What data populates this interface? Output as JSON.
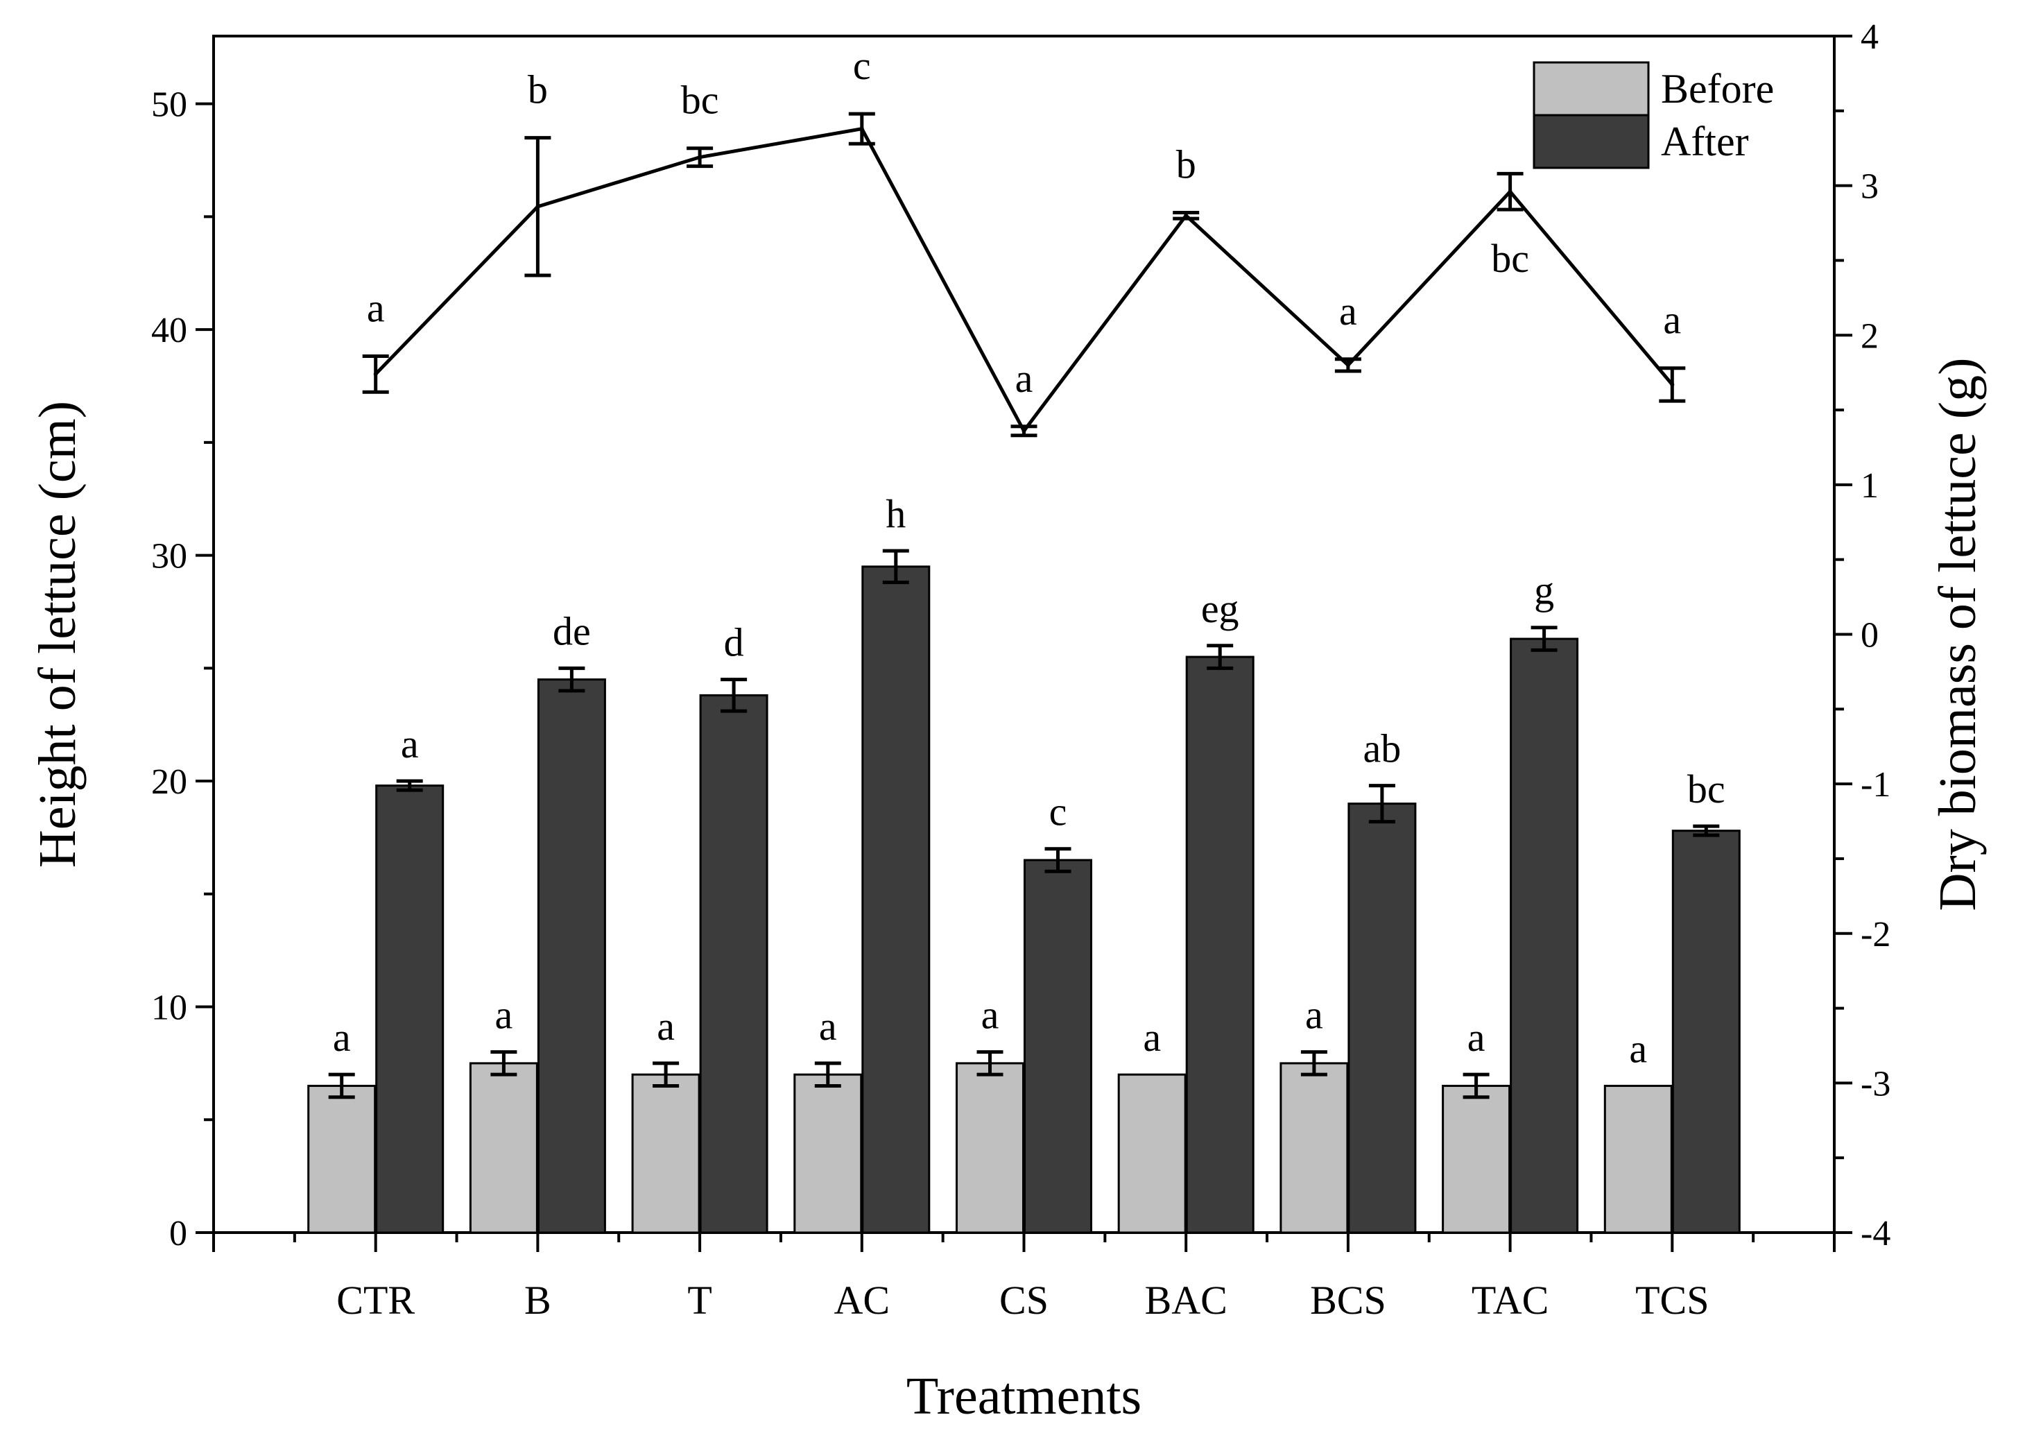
{
  "chart_data": {
    "type": "bar",
    "xlabel": "Treatments",
    "ylabel": "Height of lettuce (cm)",
    "y2label": "Dry biomass of lettuce (g)",
    "categories": [
      "CTR",
      "B",
      "T",
      "AC",
      "CS",
      "BAC",
      "BCS",
      "TAC",
      "TCS"
    ],
    "ylim": [
      0,
      53
    ],
    "y2lim": [
      -4,
      4
    ],
    "yticks": [
      "0",
      "10",
      "20",
      "30",
      "40",
      "50"
    ],
    "y2ticks": [
      "-4",
      "-3",
      "-2",
      "-1",
      "0",
      "1",
      "2",
      "3",
      "4"
    ],
    "series": [
      {
        "name": "Before",
        "axis": "left",
        "type": "bar",
        "color": "#c0c0c0",
        "values": [
          6.5,
          7.5,
          7.0,
          7.0,
          7.5,
          7.0,
          7.5,
          6.5,
          6.5
        ],
        "errors": [
          0.5,
          0.5,
          0.5,
          0.5,
          0.5,
          0,
          0.5,
          0.5,
          0
        ],
        "labels": [
          "a",
          "a",
          "a",
          "a",
          "a",
          "a",
          "a",
          "a",
          "a"
        ]
      },
      {
        "name": "After",
        "axis": "left",
        "type": "bar",
        "color": "#3c3c3c",
        "values": [
          19.8,
          24.5,
          23.8,
          29.5,
          16.5,
          25.5,
          19.0,
          26.3,
          17.8
        ],
        "errors": [
          0.2,
          0.5,
          0.7,
          0.7,
          0.5,
          0.5,
          0.8,
          0.5,
          0.2
        ],
        "labels": [
          "a",
          "de",
          "d",
          "h",
          "c",
          "eg",
          "ab",
          "g",
          "bc"
        ]
      },
      {
        "axis": "right",
        "type": "line",
        "color": "#000000",
        "values": [
          1.74,
          2.86,
          3.19,
          3.38,
          1.36,
          2.8,
          1.8,
          2.96,
          1.67
        ],
        "errors": [
          0.12,
          0.46,
          0.06,
          0.1,
          0.03,
          0.02,
          0.04,
          0.12,
          0.11
        ],
        "labels": [
          "a",
          "b",
          "bc",
          "c",
          "a",
          "b",
          "a",
          "bc",
          "a"
        ],
        "label_positions": [
          "above",
          "above",
          "above",
          "above",
          "above",
          "above",
          "above",
          "below",
          "above"
        ]
      }
    ],
    "legend": {
      "position": "top-right",
      "entries": [
        "Before",
        "After"
      ]
    }
  }
}
